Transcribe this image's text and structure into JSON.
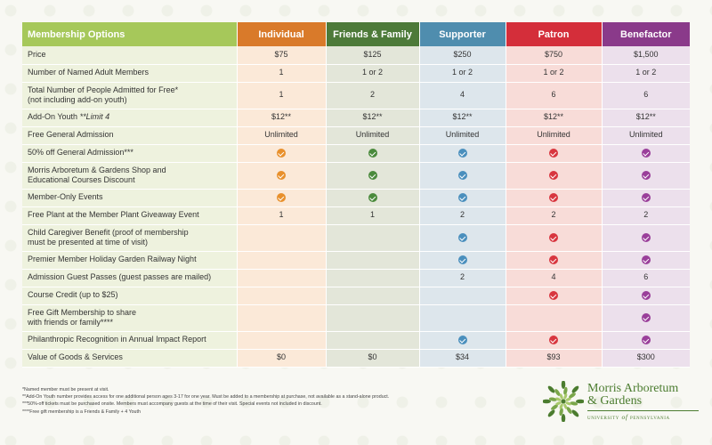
{
  "table": {
    "header": {
      "title": "Membership Options",
      "levels": [
        "Individual",
        "Friends & Family",
        "Supporter",
        "Patron",
        "Benefactor"
      ]
    },
    "rows": [
      {
        "label": "Price",
        "values": [
          "$75",
          "$125",
          "$250",
          "$750",
          "$1,500"
        ]
      },
      {
        "label": "Number of Named Adult Members",
        "values": [
          "1",
          "1 or 2",
          "1 or 2",
          "1 or 2",
          "1 or 2"
        ]
      },
      {
        "label": "Total Number of People Admitted for Free*",
        "label2": "(not including add-on youth)",
        "values": [
          "1",
          "2",
          "4",
          "6",
          "6"
        ]
      },
      {
        "label": "Add-On Youth",
        "label_italic": " **Limit 4",
        "values": [
          "$12**",
          "$12**",
          "$12**",
          "$12**",
          "$12**"
        ]
      },
      {
        "label": "Free General Admission",
        "values": [
          "Unlimited",
          "Unlimited",
          "Unlimited",
          "Unlimited",
          "Unlimited"
        ]
      },
      {
        "label": "50% off General Admission***",
        "checks": [
          true,
          true,
          true,
          true,
          true
        ]
      },
      {
        "label": "Morris Arboretum & Gardens Shop and",
        "label2": "Educational Courses Discount",
        "checks": [
          true,
          true,
          true,
          true,
          true
        ]
      },
      {
        "label": "Member-Only Events",
        "checks": [
          true,
          true,
          true,
          true,
          true
        ]
      },
      {
        "label": "Free Plant at the Member Plant Giveaway Event",
        "values": [
          "1",
          "1",
          "2",
          "2",
          "2"
        ]
      },
      {
        "label": "Child Caregiver Benefit (proof of membership",
        "label2": "must be presented at time of visit)",
        "checks": [
          false,
          false,
          true,
          true,
          true
        ]
      },
      {
        "label": "Premier Member Holiday Garden Railway Night",
        "checks": [
          false,
          false,
          true,
          true,
          true
        ]
      },
      {
        "label": "Admission Guest Passes (guest passes are mailed)",
        "values": [
          "",
          "",
          "2",
          "4",
          "6"
        ]
      },
      {
        "label": "Course Credit (up to $25)",
        "checks": [
          false,
          false,
          false,
          true,
          true
        ]
      },
      {
        "label": "Free Gift Membership to share",
        "label2": "with friends or family****",
        "checks": [
          false,
          false,
          false,
          false,
          true
        ]
      },
      {
        "label": "Philanthropic Recognition in Annual Impact Report",
        "checks": [
          false,
          false,
          true,
          true,
          true
        ]
      },
      {
        "label": "Value of Goods & Services",
        "values": [
          "$0",
          "$0",
          "$34",
          "$93",
          "$300"
        ]
      }
    ]
  },
  "colors": {
    "header": [
      "#a6c85a",
      "#d97a2a",
      "#4d7a39",
      "#4f8dae",
      "#d42e3a",
      "#8a3a8a"
    ],
    "cells": [
      "#eef2de",
      "#fbe9d8",
      "#e3e6d9",
      "#dde6ec",
      "#f8dcd8",
      "#ece0ec"
    ],
    "checks": [
      "#e8902c",
      "#4a8a3c",
      "#4a8fbd",
      "#d8363f",
      "#9a3f9a"
    ]
  },
  "footnotes": [
    "*Named member must be present at visit.",
    "**Add-On Youth number provides access for one additional person ages 3-17 for one year. Must be added to a membership at purchase, not available as a stand-alone product.",
    "***50%-off tickets must be purchased onsite. Members must accompany guests at the time of their visit. Special events not included in discount.",
    "****Free gift membership is a Friends & Family + 4 Youth"
  ],
  "logo": {
    "line1": "Morris Arboretum",
    "line2": "& Gardens",
    "line3_a": "University",
    "line3_of": "of",
    "line3_b": "Pennsylvania",
    "icon": "flower-icon"
  }
}
